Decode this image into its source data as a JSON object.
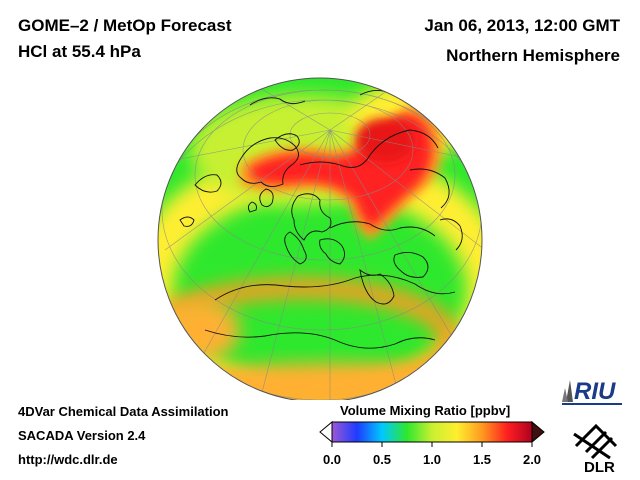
{
  "header": {
    "title_line1": "GOME–2 / MetOp Forecast",
    "title_line2": "HCl at 55.4 hPa",
    "date": "Jan 06, 2013, 12:00 GMT",
    "region": "Northern Hemisphere"
  },
  "footer": {
    "line1": "4DVar Chemical Data Assimilation",
    "line2": "SACADA Version 2.4",
    "line3": "http://wdc.dlr.de"
  },
  "colorbar": {
    "title": "Volume Mixing Ratio [ppbv]",
    "min": 0.0,
    "max": 2.0,
    "ticks": [
      "0.0",
      "0.5",
      "1.0",
      "1.5",
      "2.0"
    ],
    "colors": [
      "#ffffff",
      "#9b59d6",
      "#1e3cff",
      "#00c8ff",
      "#2ee82e",
      "#c8f030",
      "#ffee30",
      "#ff9a20",
      "#ff2020",
      "#b00020",
      "#401010"
    ]
  },
  "logos": {
    "riu": "RIU",
    "dlr": "DLR"
  },
  "map": {
    "projection": "orthographic-northern-hemisphere",
    "colors": {
      "ocean_low": "#2ee82e",
      "mid": "#c8f030",
      "yellow": "#ffee30",
      "orange": "#ff9a20",
      "high": "#ff2020"
    }
  }
}
